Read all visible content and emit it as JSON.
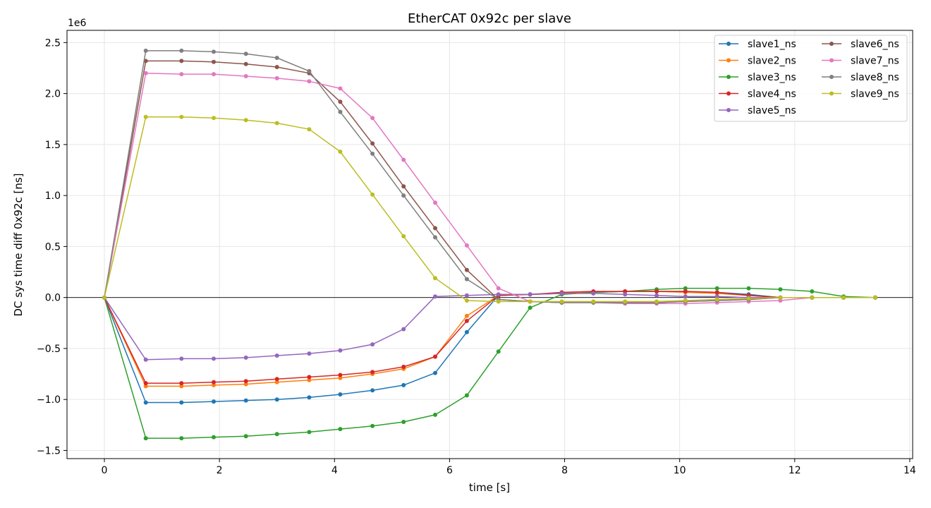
{
  "chart_data": {
    "type": "line",
    "title": "EtherCAT 0x92c per slave",
    "xlabel": "time [s]",
    "ylabel": "DC sys time diff 0x92c [ns]",
    "y_scale_label": "1e6",
    "xlim": [
      -0.65,
      14.05
    ],
    "ylim": [
      -1.58,
      2.62
    ],
    "x_ticks": [
      0,
      2,
      4,
      6,
      8,
      10,
      12,
      14
    ],
    "x_tick_labels": [
      "0",
      "2",
      "4",
      "6",
      "8",
      "10",
      "12",
      "14"
    ],
    "y_ticks": [
      -1.5,
      -1.0,
      -0.5,
      0.0,
      0.5,
      1.0,
      1.5,
      2.0,
      2.5
    ],
    "y_tick_labels": [
      "−1.5",
      "−1.0",
      "−0.5",
      "0.0",
      "0.5",
      "1.0",
      "1.5",
      "2.0",
      "2.5"
    ],
    "grid": true,
    "zero_line": true,
    "legend_position": "top-right",
    "legend_columns": 2,
    "x": [
      0,
      0.72,
      1.34,
      1.9,
      2.46,
      3.0,
      3.56,
      4.1,
      4.66,
      5.2,
      5.75,
      6.3,
      6.85,
      7.4,
      7.95,
      8.5,
      9.05,
      9.6,
      10.1,
      10.65,
      11.2,
      11.75,
      12.3,
      12.85,
      13.4
    ],
    "series": [
      {
        "name": "slave1_ns",
        "color": "#1f77b4",
        "values": [
          0,
          -1.03,
          -1.03,
          -1.02,
          -1.01,
          -1.0,
          -0.98,
          -0.95,
          -0.91,
          -0.86,
          -0.74,
          -0.34,
          0.02,
          0.03,
          0.04,
          0.05,
          0.06,
          0.06,
          0.06,
          0.05,
          0.03,
          0.0,
          0.0,
          0.0,
          0.0
        ]
      },
      {
        "name": "slave2_ns",
        "color": "#ff7f0e",
        "values": [
          0,
          -0.87,
          -0.87,
          -0.86,
          -0.85,
          -0.83,
          -0.81,
          -0.79,
          -0.75,
          -0.7,
          -0.58,
          -0.18,
          0.02,
          0.03,
          0.04,
          0.05,
          0.06,
          0.06,
          0.05,
          0.04,
          0.02,
          0.0,
          0.0,
          0.0,
          0.0
        ]
      },
      {
        "name": "slave3_ns",
        "color": "#2ca02c",
        "values": [
          0,
          -1.38,
          -1.38,
          -1.37,
          -1.36,
          -1.34,
          -1.32,
          -1.29,
          -1.26,
          -1.22,
          -1.15,
          -0.96,
          -0.53,
          -0.1,
          0.03,
          0.05,
          0.06,
          0.08,
          0.09,
          0.09,
          0.09,
          0.08,
          0.06,
          0.01,
          0.0
        ]
      },
      {
        "name": "slave4_ns",
        "color": "#d62728",
        "values": [
          0,
          -0.84,
          -0.84,
          -0.83,
          -0.82,
          -0.8,
          -0.78,
          -0.76,
          -0.73,
          -0.68,
          -0.58,
          -0.23,
          0.02,
          0.03,
          0.05,
          0.06,
          0.06,
          0.06,
          0.06,
          0.05,
          0.02,
          0.0,
          0.0,
          0.0,
          0.0
        ]
      },
      {
        "name": "slave5_ns",
        "color": "#9467bd",
        "values": [
          0,
          -0.61,
          -0.6,
          -0.6,
          -0.59,
          -0.57,
          -0.55,
          -0.52,
          -0.46,
          -0.31,
          0.01,
          0.02,
          0.03,
          0.03,
          0.04,
          0.04,
          0.03,
          0.02,
          0.01,
          0.01,
          0.0,
          0.0,
          0.0,
          0.0,
          0.0
        ]
      },
      {
        "name": "slave6_ns",
        "color": "#8c564b",
        "values": [
          0,
          2.32,
          2.32,
          2.31,
          2.29,
          2.26,
          2.2,
          1.92,
          1.51,
          1.09,
          0.68,
          0.27,
          -0.02,
          -0.04,
          -0.05,
          -0.05,
          -0.05,
          -0.05,
          -0.04,
          -0.03,
          -0.02,
          0.0,
          0.0,
          0.0,
          0.0
        ]
      },
      {
        "name": "slave7_ns",
        "color": "#e377c2",
        "values": [
          0,
          2.2,
          2.19,
          2.19,
          2.17,
          2.15,
          2.12,
          2.05,
          1.76,
          1.35,
          0.93,
          0.51,
          0.09,
          -0.04,
          -0.05,
          -0.05,
          -0.06,
          -0.06,
          -0.06,
          -0.05,
          -0.04,
          -0.03,
          0.0,
          0.0,
          0.0
        ]
      },
      {
        "name": "slave8_ns",
        "color": "#7f7f7f",
        "values": [
          0,
          2.42,
          2.42,
          2.41,
          2.39,
          2.35,
          2.22,
          1.82,
          1.41,
          1.0,
          0.59,
          0.18,
          -0.02,
          -0.04,
          -0.05,
          -0.05,
          -0.05,
          -0.05,
          -0.04,
          -0.03,
          -0.02,
          0.0,
          0.0,
          0.0,
          0.0
        ]
      },
      {
        "name": "slave9_ns",
        "color": "#bcbd22",
        "values": [
          0,
          1.77,
          1.77,
          1.76,
          1.74,
          1.71,
          1.65,
          1.43,
          1.01,
          0.6,
          0.19,
          -0.03,
          -0.04,
          -0.04,
          -0.04,
          -0.04,
          -0.04,
          -0.04,
          -0.03,
          -0.02,
          -0.01,
          0.0,
          0.0,
          0.0,
          0.0
        ]
      }
    ]
  }
}
